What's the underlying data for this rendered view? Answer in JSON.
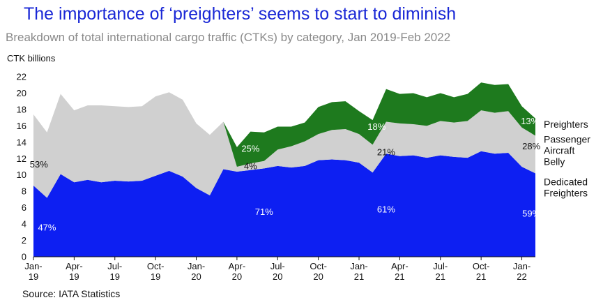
{
  "title": "The importance of ‘preighters’ seems to start to diminish",
  "subtitle": "Breakdown of total international cargo traffic (CTKs) by category, Jan 2019-Feb 2022",
  "source": "Source: IATA Statistics",
  "colors": {
    "dedicated": "#0d1ff2",
    "belly": "#d0d0d0",
    "preighters": "#1e7a1e",
    "title": "#1a28d6"
  },
  "chart_data": {
    "type": "area",
    "stacked": true,
    "ylabel": "CTK billions",
    "ylim": [
      0,
      22
    ],
    "yticks": [
      0,
      2,
      4,
      6,
      8,
      10,
      12,
      14,
      16,
      18,
      20,
      22
    ],
    "grid": false,
    "legend_position": "right",
    "x": [
      "Jan-19",
      "Feb-19",
      "Mar-19",
      "Apr-19",
      "May-19",
      "Jun-19",
      "Jul-19",
      "Aug-19",
      "Sep-19",
      "Oct-19",
      "Nov-19",
      "Dec-19",
      "Jan-20",
      "Feb-20",
      "Mar-20",
      "Apr-20",
      "May-20",
      "Jun-20",
      "Jul-20",
      "Aug-20",
      "Sep-20",
      "Oct-20",
      "Nov-20",
      "Dec-20",
      "Jan-21",
      "Feb-21",
      "Mar-21",
      "Apr-21",
      "May-21",
      "Jun-21",
      "Jul-21",
      "Aug-21",
      "Sep-21",
      "Oct-21",
      "Nov-21",
      "Dec-21",
      "Jan-22",
      "Feb-22"
    ],
    "xticks": [
      {
        "index": 0,
        "line1": "Jan-",
        "line2": "19"
      },
      {
        "index": 3,
        "line1": "Apr-",
        "line2": "19"
      },
      {
        "index": 6,
        "line1": "Jul-",
        "line2": "19"
      },
      {
        "index": 9,
        "line1": "Oct-",
        "line2": "19"
      },
      {
        "index": 12,
        "line1": "Jan-",
        "line2": "20"
      },
      {
        "index": 15,
        "line1": "Apr-",
        "line2": "20"
      },
      {
        "index": 18,
        "line1": "Jul-",
        "line2": "20"
      },
      {
        "index": 21,
        "line1": "Oct-",
        "line2": "20"
      },
      {
        "index": 24,
        "line1": "Jan-",
        "line2": "21"
      },
      {
        "index": 27,
        "line1": "Apr-",
        "line2": "21"
      },
      {
        "index": 30,
        "line1": "Jul-",
        "line2": "21"
      },
      {
        "index": 33,
        "line1": "Oct-",
        "line2": "21"
      },
      {
        "index": 36,
        "line1": "Jan-",
        "line2": "22"
      }
    ],
    "series": [
      {
        "name": "Dedicated Freighters",
        "legend_lines": [
          "Dedicated",
          "Freighters"
        ],
        "color": "#0d1ff2",
        "values": [
          8.7,
          7.2,
          10.1,
          9.1,
          9.4,
          9.1,
          9.3,
          9.2,
          9.3,
          9.9,
          10.5,
          9.8,
          8.4,
          7.5,
          10.7,
          10.4,
          10.6,
          10.8,
          11.1,
          10.9,
          11.1,
          11.8,
          11.9,
          11.8,
          11.5,
          10.3,
          12.6,
          12.3,
          12.4,
          12.1,
          12.4,
          12.2,
          12.1,
          12.9,
          12.6,
          12.7,
          11.0,
          10.2
        ]
      },
      {
        "name": "Passenger Aircraft Belly",
        "legend_lines": [
          "Passenger",
          "Aircraft",
          "Belly"
        ],
        "color": "#d0d0d0",
        "values": [
          8.7,
          8.0,
          9.8,
          8.8,
          9.1,
          9.4,
          9.1,
          9.1,
          9.1,
          9.7,
          9.6,
          9.4,
          7.9,
          7.4,
          5.8,
          0.6,
          0.8,
          0.9,
          2.0,
          2.6,
          3.0,
          3.2,
          3.6,
          3.8,
          3.5,
          3.4,
          3.9,
          4.0,
          3.8,
          3.9,
          4.2,
          4.2,
          4.5,
          5.0,
          5.0,
          5.1,
          4.8,
          4.6
        ]
      },
      {
        "name": "Preighters",
        "legend_lines": [
          "Preighters"
        ],
        "color": "#1e7a1e",
        "values": [
          0,
          0,
          0,
          0,
          0,
          0,
          0,
          0,
          0,
          0,
          0,
          0,
          0,
          0,
          0,
          2.4,
          3.9,
          3.5,
          2.8,
          2.4,
          2.3,
          3.3,
          3.4,
          3.4,
          2.8,
          3.0,
          4.0,
          3.6,
          3.8,
          3.5,
          3.4,
          3.1,
          3.3,
          3.4,
          3.4,
          3.3,
          2.6,
          2.1
        ]
      }
    ],
    "annotations": [
      {
        "text": "53%",
        "series": "Passenger Aircraft Belly",
        "x_index": 0.4,
        "y": 11.3,
        "color": "#111111"
      },
      {
        "text": "47%",
        "series": "Dedicated Freighters",
        "x_index": 1.0,
        "y": 3.6,
        "color": "#ffffff"
      },
      {
        "text": "25%",
        "series": "Preighters",
        "x_index": 16.0,
        "y": 13.2,
        "color": "#ffffff"
      },
      {
        "text": "4%",
        "series": "Passenger Aircraft Belly",
        "x_index": 16.0,
        "y": 11.1,
        "color": "#111111"
      },
      {
        "text": "71%",
        "series": "Dedicated Freighters",
        "x_index": 17.0,
        "y": 5.5,
        "color": "#ffffff"
      },
      {
        "text": "18%",
        "series": "Preighters",
        "x_index": 25.3,
        "y": 15.9,
        "color": "#ffffff"
      },
      {
        "text": "21%",
        "series": "Passenger Aircraft Belly",
        "x_index": 26.0,
        "y": 12.8,
        "color": "#111111"
      },
      {
        "text": "61%",
        "series": "Dedicated Freighters",
        "x_index": 26.0,
        "y": 5.8,
        "color": "#ffffff"
      },
      {
        "text": "13%",
        "series": "Preighters",
        "x_index": 36.6,
        "y": 16.6,
        "color": "#ffffff"
      },
      {
        "text": "28%",
        "series": "Passenger Aircraft Belly",
        "x_index": 36.7,
        "y": 13.5,
        "color": "#111111"
      },
      {
        "text": "59%",
        "series": "Dedicated Freighters",
        "x_index": 36.7,
        "y": 5.3,
        "color": "#ffffff"
      }
    ]
  }
}
